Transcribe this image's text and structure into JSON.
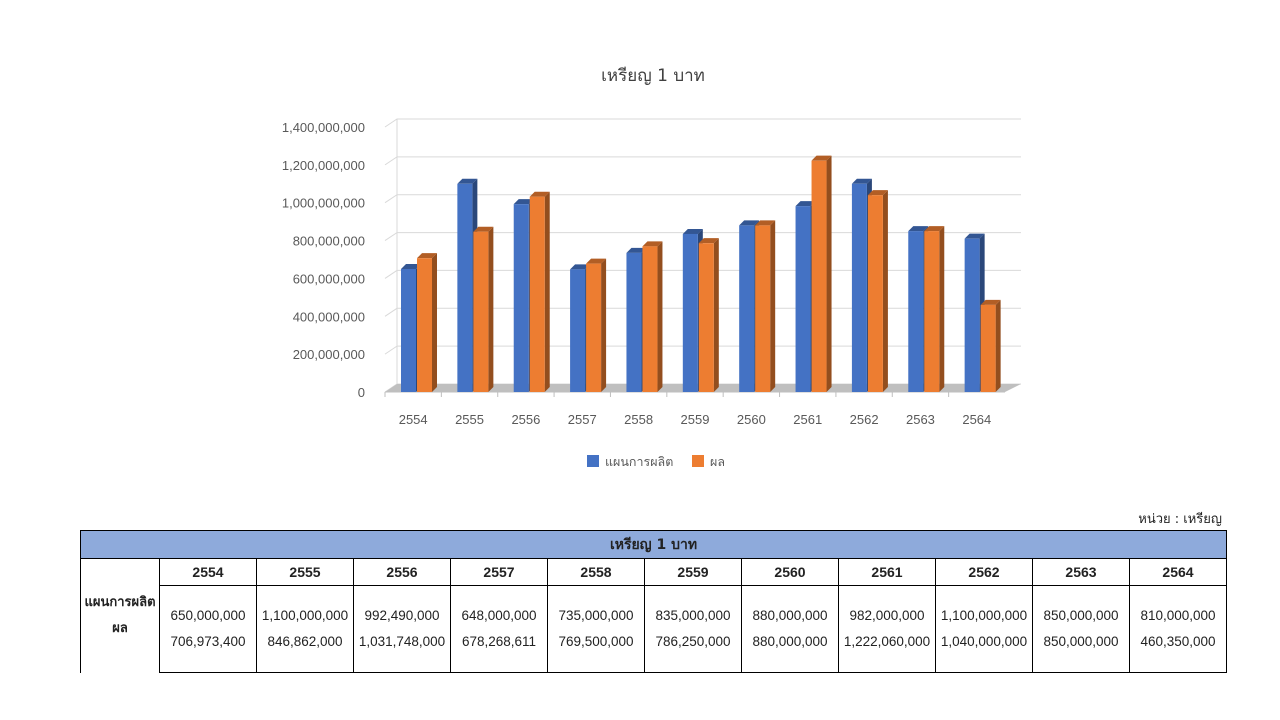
{
  "chart_data": {
    "type": "bar",
    "title": "เหรียญ 1 บาท",
    "categories": [
      "2554",
      "2555",
      "2556",
      "2557",
      "2558",
      "2559",
      "2560",
      "2561",
      "2562",
      "2563",
      "2564"
    ],
    "series": [
      {
        "name": "แผนการผลิต",
        "color": "#4472c4",
        "values": [
          650000000,
          1100000000,
          992490000,
          648000000,
          735000000,
          835000000,
          880000000,
          982000000,
          1100000000,
          850000000,
          810000000
        ]
      },
      {
        "name": "ผล",
        "color": "#ed7d31",
        "values": [
          706973400,
          846862000,
          1031748000,
          678268611,
          769500000,
          786250000,
          880000000,
          1222060000,
          1040000000,
          850000000,
          460350000
        ]
      }
    ],
    "ylim": [
      0,
      1400000000
    ],
    "yticks": [
      "0",
      "200,000,000",
      "400,000,000",
      "600,000,000",
      "800,000,000",
      "1,000,000,000",
      "1,200,000,000",
      "1,400,000,000"
    ],
    "grid": true,
    "legend": "bottom"
  },
  "unit_note": "หน่วย : เหรียญ",
  "table": {
    "title": "เหรียญ 1 บาท",
    "years": [
      "2554",
      "2555",
      "2556",
      "2557",
      "2558",
      "2559",
      "2560",
      "2561",
      "2562",
      "2563",
      "2564"
    ],
    "row_labels": [
      "แผนการผลิต",
      "ผล"
    ],
    "plan": [
      "650,000,000",
      "1,100,000,000",
      "992,490,000",
      "648,000,000",
      "735,000,000",
      "835,000,000",
      "880,000,000",
      "982,000,000",
      "1,100,000,000",
      "850,000,000",
      "810,000,000"
    ],
    "actual": [
      "706,973,400",
      "846,862,000",
      "1,031,748,000",
      "678,268,611",
      "769,500,000",
      "786,250,000",
      "880,000,000",
      "1,222,060,000",
      "1,040,000,000",
      "850,000,000",
      "460,350,000"
    ]
  }
}
